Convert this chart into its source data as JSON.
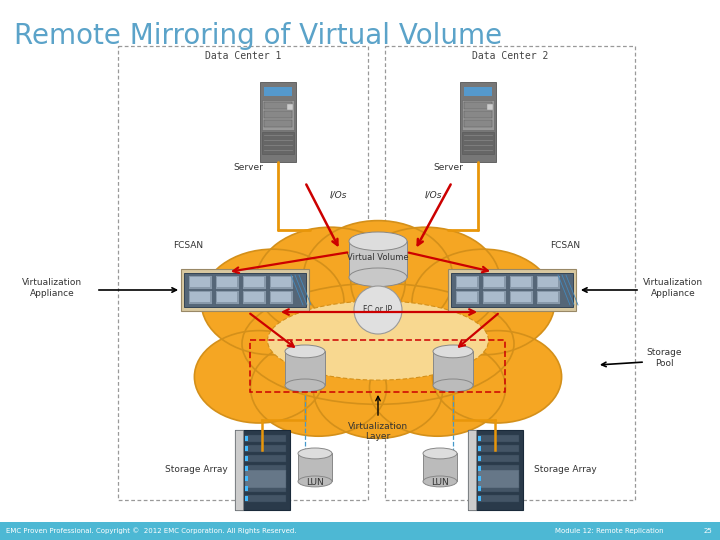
{
  "title": "Remote Mirroring of Virtual Volume",
  "title_color": "#5BA3C9",
  "title_fontsize": 20,
  "bg_color": "#FFFFFF",
  "footer_bg": "#4DB8D4",
  "footer_left": "EMC Proven Professional. Copyright ©  2012 EMC Corporation. All Rights Reserved.",
  "footer_right": "Module 12: Remote Replication",
  "footer_page": "25",
  "dc1_label": "Data Center 1",
  "dc2_label": "Data Center 2",
  "server_label": "Server",
  "ios_label": "I/Os",
  "fcsan_label": "FCSAN",
  "virtual_volume_label": "Virtual Volume",
  "fc_ip_label": "FC or IP",
  "virt_appliance_label": "Virtualization\nAppliance",
  "storage_pool_label": "Storage\nPool",
  "storage_array_label": "Storage Array",
  "lun_label": "LUN",
  "virt_layer_label": "Virtualization\nLayer",
  "cloud_color": "#F5A623",
  "cloud_edge_color": "#D4901A",
  "dc_box_color": "#999999",
  "dashed_box_color": "#CC0000",
  "arrow_red": "#CC0000",
  "arrow_black": "#000000",
  "arrow_orange": "#E8960A",
  "label_fontsize": 6.5,
  "small_fontsize": 5.5,
  "cloud_inner_color": "#F5C06A"
}
